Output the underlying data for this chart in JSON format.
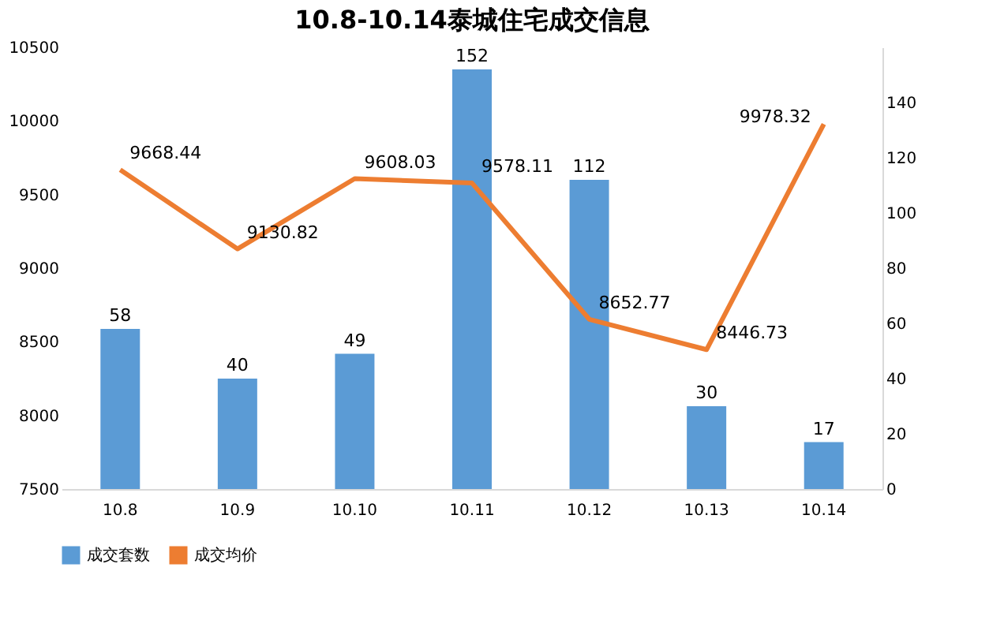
{
  "chart_data": {
    "type": "bar",
    "title": "10.8-10.14泰城住宅成交信息",
    "categories": [
      "10.8",
      "10.9",
      "10.10",
      "10.11",
      "10.12",
      "10.13",
      "10.14"
    ],
    "series": [
      {
        "name": "成交套数",
        "axis": "y2",
        "color": "#5b9bd5",
        "values": [
          58,
          40,
          49,
          152,
          112,
          30,
          17
        ]
      },
      {
        "name": "成交均价",
        "type": "line",
        "color": "#ed7d31",
        "values": [
          9668.44,
          9130.82,
          9608.03,
          9578.11,
          8652.77,
          8446.73,
          9978.32
        ]
      }
    ],
    "ylim": [
      7500,
      10500
    ],
    "yticks": [
      7500,
      8000,
      8500,
      9000,
      9500,
      10000,
      10500
    ],
    "y2lim": [
      0,
      160
    ],
    "y2ticks": [
      0,
      20,
      40,
      60,
      80,
      100,
      120,
      140
    ],
    "data_labels": true,
    "legend": "bottom",
    "marker": "none",
    "line_style": "solid",
    "grid": false
  }
}
